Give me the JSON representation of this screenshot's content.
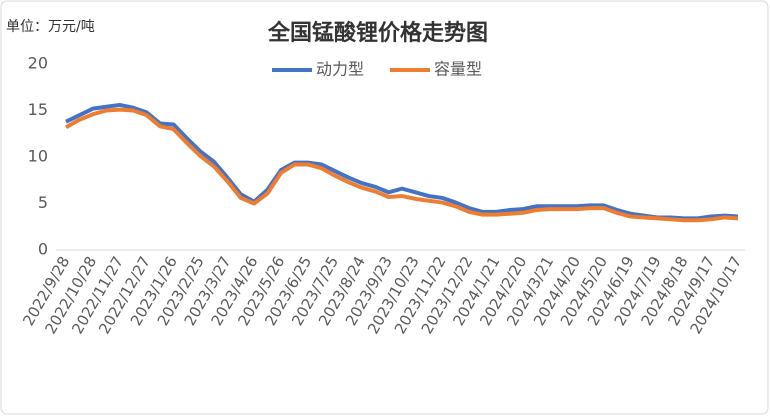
{
  "chart_data": {
    "type": "line",
    "title": "全国锰酸锂价格走势图",
    "unit_label": "单位：万元/吨",
    "categories": [
      "2022/9/28",
      null,
      "2022/10/28",
      null,
      "2022/11/27",
      null,
      "2022/12/27",
      null,
      "2023/1/26",
      null,
      "2023/2/25",
      null,
      "2023/3/27",
      null,
      "2023/4/26",
      null,
      "2023/5/26",
      null,
      "2023/6/25",
      null,
      "2023/7/25",
      null,
      "2023/8/24",
      null,
      "2023/9/23",
      null,
      "2023/10/23",
      null,
      "2023/11/22",
      null,
      "2023/12/22",
      null,
      "2024/1/21",
      null,
      "2024/2/20",
      null,
      "2024/3/21",
      null,
      "2024/4/20",
      null,
      "2024/5/20",
      null,
      "2024/6/19",
      null,
      "2024/7/19",
      null,
      "2024/8/18",
      null,
      "2024/9/17",
      null,
      "2024/10/17"
    ],
    "series": [
      {
        "name": "动力型",
        "color": "#4472c4",
        "values": [
          13.8,
          14.5,
          15.2,
          15.4,
          15.6,
          15.3,
          14.8,
          13.6,
          13.5,
          12.0,
          10.6,
          9.5,
          7.8,
          6.0,
          5.2,
          6.5,
          8.6,
          9.4,
          9.4,
          9.2,
          8.5,
          7.8,
          7.2,
          6.8,
          6.2,
          6.6,
          6.2,
          5.8,
          5.6,
          5.1,
          4.5,
          4.1,
          4.1,
          4.3,
          4.4,
          4.7,
          4.7,
          4.7,
          4.7,
          4.8,
          4.8,
          4.3,
          3.9,
          3.7,
          3.5,
          3.5,
          3.4,
          3.4,
          3.6,
          3.7,
          3.6
        ]
      },
      {
        "name": "容量型",
        "color": "#ed7d31",
        "values": [
          13.2,
          14.0,
          14.6,
          15.0,
          15.1,
          15.0,
          14.5,
          13.3,
          13.0,
          11.5,
          10.1,
          9.0,
          7.4,
          5.6,
          5.0,
          6.1,
          8.3,
          9.2,
          9.2,
          8.8,
          8.0,
          7.3,
          6.7,
          6.3,
          5.7,
          5.8,
          5.5,
          5.3,
          5.1,
          4.7,
          4.1,
          3.8,
          3.8,
          3.9,
          4.0,
          4.3,
          4.4,
          4.4,
          4.4,
          4.5,
          4.5,
          4.0,
          3.6,
          3.5,
          3.4,
          3.3,
          3.2,
          3.2,
          3.3,
          3.5,
          3.4
        ]
      }
    ],
    "ylim": [
      0,
      20
    ],
    "yticks": [
      0,
      5,
      10,
      15,
      20
    ],
    "grid": false,
    "legend": "top"
  }
}
